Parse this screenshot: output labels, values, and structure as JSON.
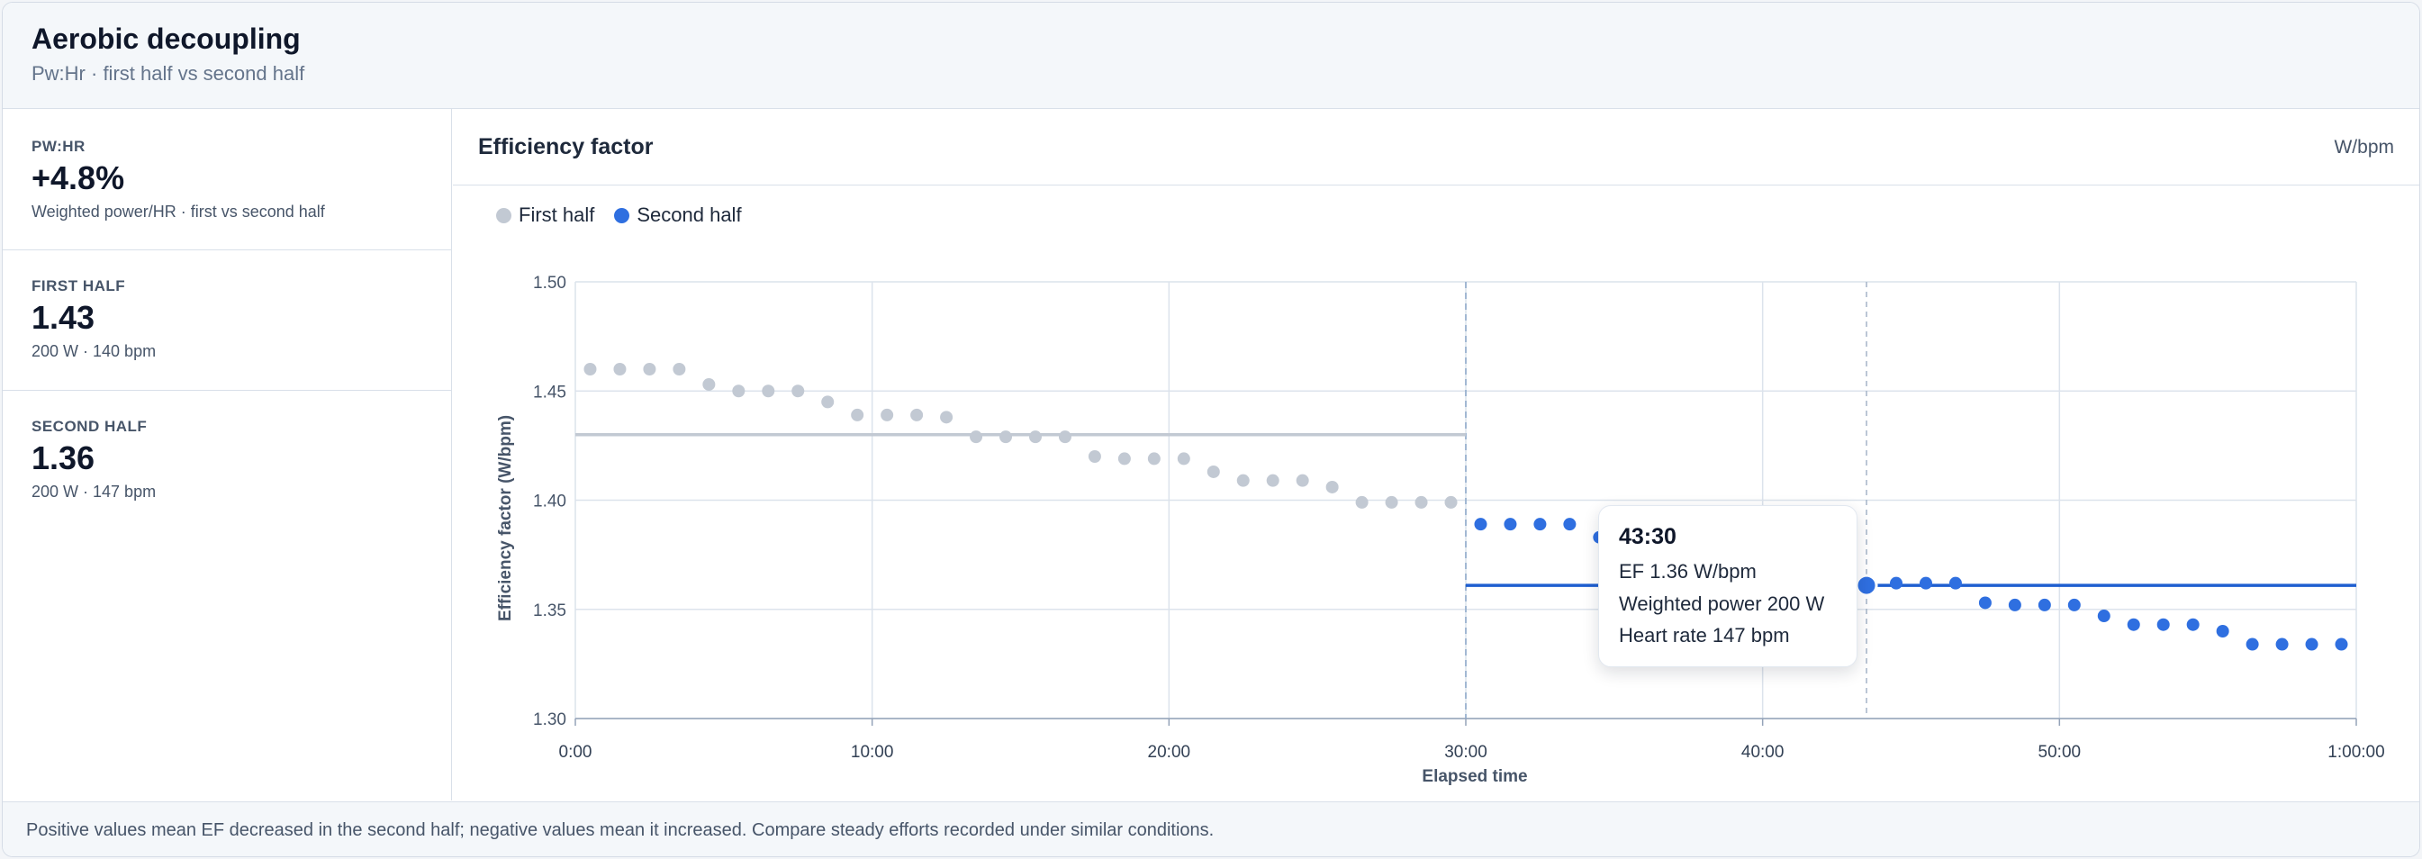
{
  "header": {
    "title": "Aerobic decoupling",
    "subtitle": "Pw:Hr · first half vs second half"
  },
  "metrics": [
    {
      "label": "PW:HR",
      "value": "+4.8%",
      "detail": "Weighted power/HR · first vs second half"
    },
    {
      "label": "FIRST HALF",
      "value": "1.43",
      "detail": "200 W · 140 bpm"
    },
    {
      "label": "SECOND HALF",
      "value": "1.36",
      "detail": "200 W · 147 bpm"
    }
  ],
  "panel": {
    "title": "Efficiency factor",
    "unit": "W/bpm"
  },
  "tooltip": {
    "time": "43:30",
    "ef": "EF 1.36 W/bpm",
    "power": "Weighted power 200 W",
    "heart_rate": "Heart rate 147 bpm"
  },
  "footer": {
    "note": "Positive values mean EF decreased in the second half; negative values mean it increased. Compare steady efforts recorded under similar conditions."
  },
  "colors": {
    "first_half": "#c2c9d3",
    "second_half": "#2f6fe0",
    "first_half_line": "#c2c9d3",
    "second_half_line": "#1f5fd0",
    "grid": "#dce3ec",
    "divider": "#8aa6c8"
  },
  "chart_data": {
    "type": "scatter",
    "title": "Efficiency factor",
    "xlabel": "Elapsed time",
    "ylabel": "Efficiency factor (W/bpm)",
    "xlim": [
      0,
      60
    ],
    "ylim": [
      1.3,
      1.5
    ],
    "x_ticks": [
      0,
      10,
      20,
      30,
      40,
      50,
      60
    ],
    "x_tick_labels": [
      "0:00",
      "10:00",
      "20:00",
      "30:00",
      "40:00",
      "50:00",
      "1:00:00"
    ],
    "y_ticks": [
      1.3,
      1.35,
      1.4,
      1.45,
      1.5
    ],
    "y_tick_labels": [
      "1.30",
      "1.35",
      "1.40",
      "1.45",
      "1.50"
    ],
    "grid": true,
    "legend": "top-left",
    "half_marker_x": 30,
    "hover_marker_x": 43.5,
    "series": [
      {
        "name": "First half",
        "mean": 1.43,
        "x": [
          0.5,
          1.5,
          2.5,
          3.5,
          4.5,
          5.5,
          6.5,
          7.5,
          8.5,
          9.5,
          10.5,
          11.5,
          12.5,
          13.5,
          14.5,
          15.5,
          16.5,
          17.5,
          18.5,
          19.5,
          20.5,
          21.5,
          22.5,
          23.5,
          24.5,
          25.5,
          26.5,
          27.5,
          28.5,
          29.5
        ],
        "y": [
          1.46,
          1.46,
          1.46,
          1.46,
          1.453,
          1.45,
          1.45,
          1.45,
          1.445,
          1.439,
          1.439,
          1.439,
          1.438,
          1.429,
          1.429,
          1.429,
          1.429,
          1.42,
          1.419,
          1.419,
          1.419,
          1.413,
          1.409,
          1.409,
          1.409,
          1.406,
          1.399,
          1.399,
          1.399,
          1.399
        ]
      },
      {
        "name": "Second half",
        "mean": 1.361,
        "x": [
          30.5,
          31.5,
          32.5,
          33.5,
          34.5,
          35.5,
          36.5,
          37.5,
          38.5,
          39.5,
          40.5,
          41.5,
          42.5,
          43.5,
          44.5,
          45.5,
          46.5,
          47.5,
          48.5,
          49.5,
          50.5,
          51.5,
          52.5,
          53.5,
          54.5,
          55.5,
          56.5,
          57.5,
          58.5,
          59.5
        ],
        "y": [
          1.389,
          1.389,
          1.389,
          1.389,
          1.383,
          1.38,
          1.379,
          1.378,
          1.376,
          1.374,
          1.372,
          1.368,
          1.365,
          1.362,
          1.362,
          1.362,
          1.362,
          1.353,
          1.352,
          1.352,
          1.352,
          1.347,
          1.343,
          1.343,
          1.343,
          1.34,
          1.334,
          1.334,
          1.334,
          1.334
        ]
      }
    ]
  }
}
